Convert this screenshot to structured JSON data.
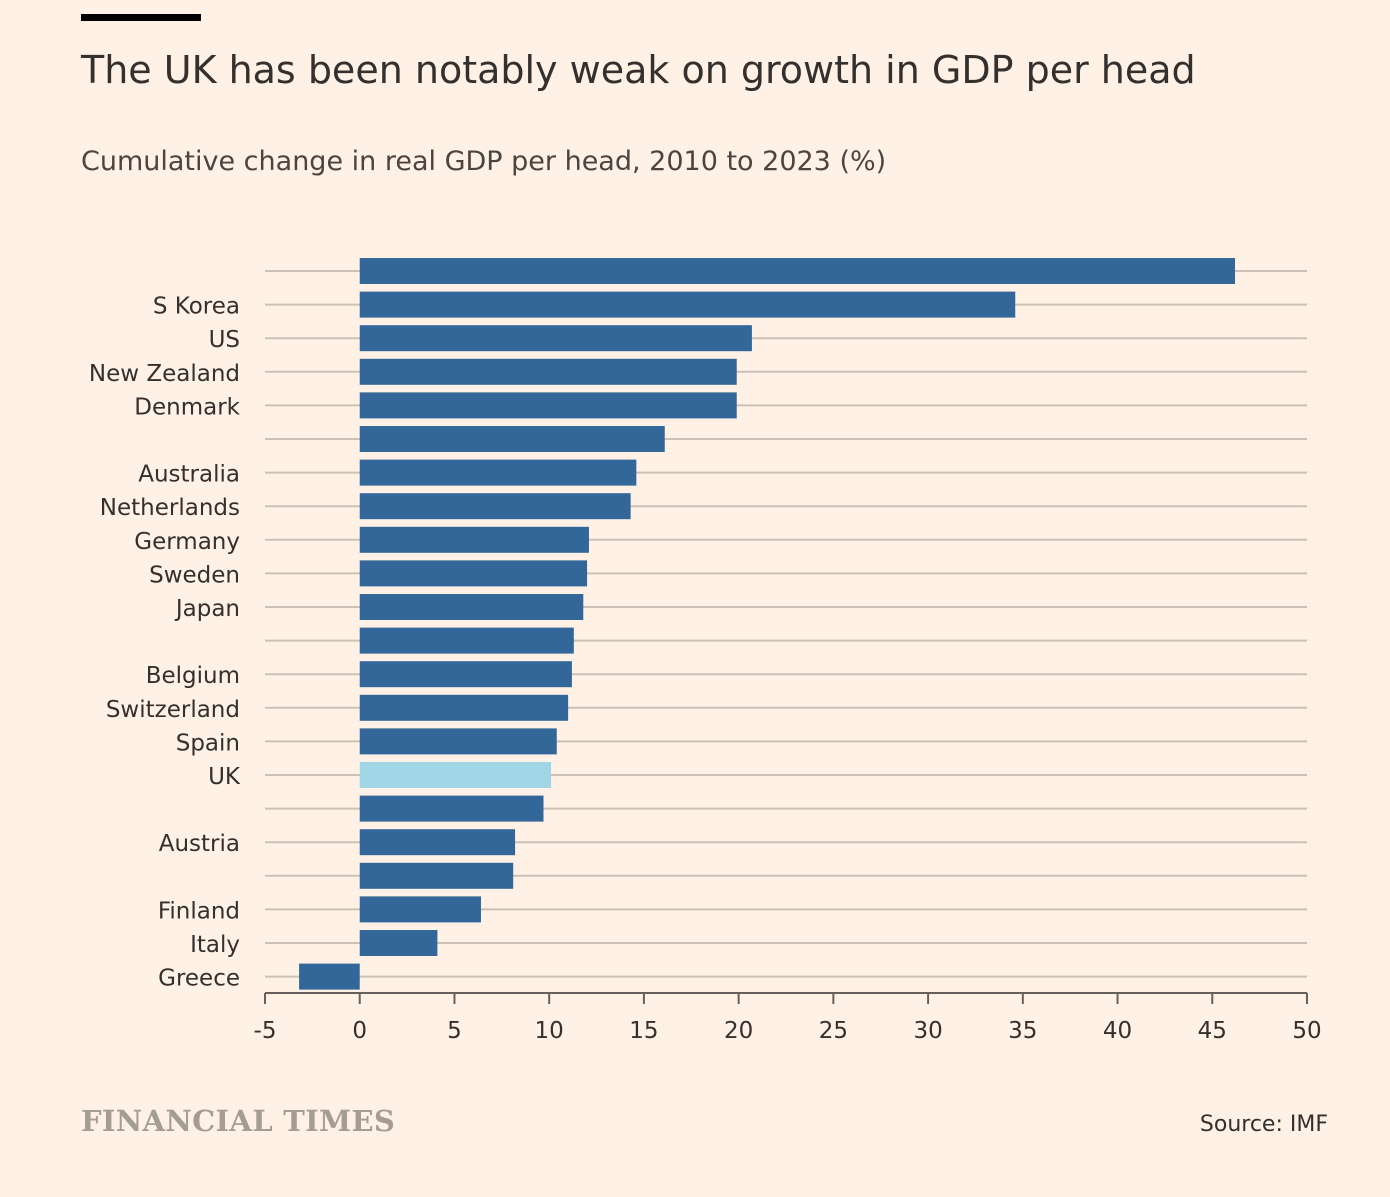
{
  "header": {
    "title": "The UK has been notably weak on growth in GDP per head",
    "subtitle": "Cumulative change in real GDP per head, 2010 to 2023 (%)"
  },
  "footer": {
    "brand": "FINANCIAL TIMES",
    "source": "Source: IMF"
  },
  "colors": {
    "background": "#FFF1E5",
    "bar": "#336699",
    "highlight": "#A0D5E6",
    "gridline": "#CCC1B7"
  },
  "chart_data": {
    "type": "bar",
    "orientation": "horizontal",
    "categories": [
      "",
      "S Korea",
      "US",
      "New Zealand",
      "Denmark",
      "",
      "Australia",
      "Netherlands",
      "Germany",
      "Sweden",
      "Japan",
      "",
      "Belgium",
      "Switzerland",
      "Spain",
      "UK",
      "",
      "Austria",
      "",
      "Finland",
      "Italy",
      "Greece"
    ],
    "values": [
      46.2,
      34.6,
      20.7,
      19.9,
      19.9,
      16.1,
      14.6,
      14.3,
      12.1,
      12.0,
      11.8,
      11.3,
      11.2,
      11.0,
      10.4,
      10.1,
      9.7,
      8.2,
      8.1,
      6.4,
      4.1,
      -3.2
    ],
    "highlight": "UK",
    "xlim": [
      -5,
      50
    ],
    "xticks": [
      "-5",
      "0",
      "5",
      "10",
      "15",
      "20",
      "25",
      "30",
      "35",
      "40",
      "45",
      "50"
    ],
    "title": "The UK has been notably weak on growth in GDP per head",
    "subtitle": "Cumulative change in real GDP per head, 2010 to 2023 (%)",
    "xlabel": "",
    "ylabel": "",
    "grid": true,
    "legend": "none"
  }
}
